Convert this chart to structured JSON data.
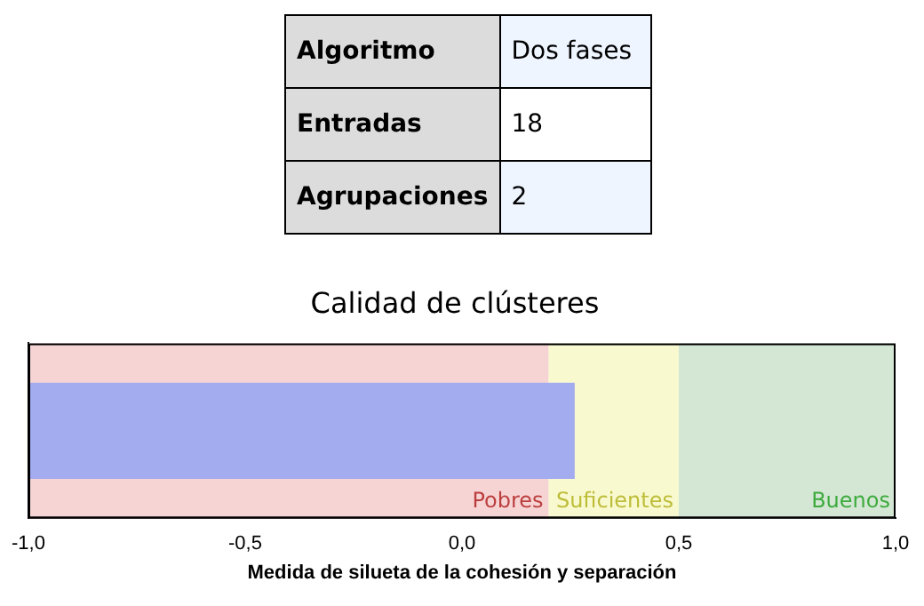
{
  "chart_data": [
    {
      "type": "other",
      "annotations": [
        "Algoritmo",
        "Dos fases",
        "Entradas",
        "18",
        "Agrupaciones",
        "2"
      ]
    },
    {
      "type": "bar",
      "title": "Calidad de clústeres",
      "xlabel": "Medida de silueta de la cohesión y separación",
      "orientation": "horizontal",
      "categories": [
        null
      ],
      "base": [
        -1
      ],
      "values": [
        1.26
      ],
      "color": "#a4acf0",
      "xlim": [
        -1,
        1
      ],
      "xticks": [
        {
          "value": -1,
          "label": "-1,0"
        },
        {
          "value": -0.5,
          "label": "-0,5"
        },
        {
          "value": 0,
          "label": "0,0"
        },
        {
          "value": 0.5,
          "label": "0,5"
        },
        {
          "value": 1,
          "label": "1,0"
        }
      ],
      "bands": [
        {
          "axis": "x",
          "from": -1,
          "to": 0.2,
          "label": "Pobres",
          "color": "#f7d4d4"
        },
        {
          "axis": "x",
          "from": 0.2,
          "to": 0.5,
          "label": "Suficientes",
          "color": "#f9f9cf"
        },
        {
          "axis": "x",
          "from": 0.5,
          "to": 1,
          "label": "Buenos",
          "color": "#d4e7d4"
        }
      ],
      "grid": false,
      "legend": false,
      "tick_labels": "x"
    }
  ]
}
